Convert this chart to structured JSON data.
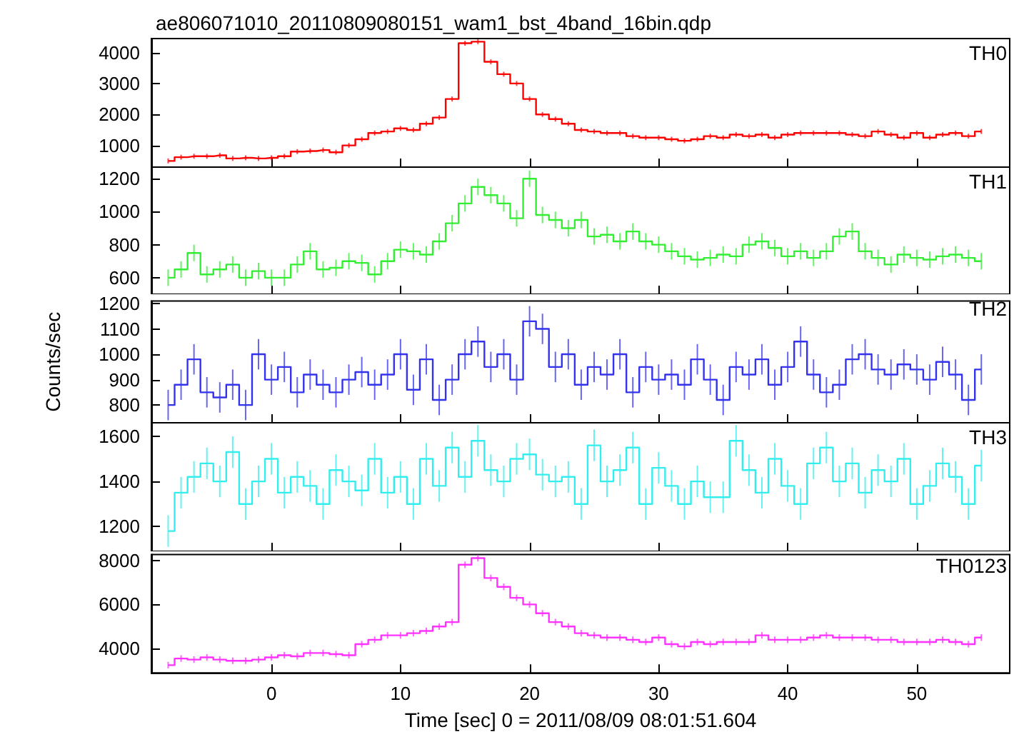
{
  "chart_data": [
    {
      "type": "step",
      "title": "ae806071010_20110809080151_wam1_bst_4band_16bin.qdp",
      "x": [
        -8,
        -7,
        -6,
        -5,
        -4,
        -3,
        -2,
        -1,
        0,
        1,
        2,
        3,
        4,
        5,
        6,
        7,
        8,
        9,
        10,
        11,
        12,
        13,
        14,
        15,
        16,
        17,
        18,
        19,
        20,
        21,
        22,
        23,
        24,
        25,
        26,
        27,
        28,
        29,
        30,
        31,
        32,
        33,
        34,
        35,
        36,
        37,
        38,
        39,
        40,
        41,
        42,
        43,
        44,
        45,
        46,
        47,
        48,
        49,
        50,
        51,
        52,
        53,
        54,
        55
      ],
      "series": [
        {
          "name": "TH0",
          "color": "#ff0000",
          "values": [
            500,
            620,
            650,
            650,
            680,
            580,
            600,
            580,
            600,
            650,
            800,
            820,
            850,
            780,
            1000,
            1200,
            1400,
            1450,
            1550,
            1500,
            1700,
            1900,
            2500,
            4300,
            4350,
            3700,
            3300,
            3000,
            2500,
            2000,
            1850,
            1700,
            1500,
            1450,
            1400,
            1400,
            1300,
            1250,
            1250,
            1200,
            1150,
            1200,
            1300,
            1250,
            1350,
            1300,
            1350,
            1250,
            1350,
            1400,
            1400,
            1400,
            1400,
            1350,
            1300,
            1450,
            1350,
            1250,
            1400,
            1250,
            1350,
            1400,
            1300,
            1450
          ],
          "errors": [
            80,
            80,
            80,
            80,
            80,
            80,
            80,
            80,
            80,
            80,
            80,
            80,
            80,
            80,
            80,
            80,
            80,
            80,
            80,
            80,
            80,
            80,
            80,
            80,
            80,
            80,
            80,
            80,
            80,
            80,
            80,
            80,
            80,
            80,
            80,
            80,
            80,
            80,
            80,
            80,
            80,
            80,
            80,
            80,
            80,
            80,
            80,
            80,
            80,
            80,
            80,
            80,
            80,
            80,
            80,
            80,
            80,
            80,
            80,
            80,
            80,
            80,
            80,
            80
          ]
        }
      ],
      "xlim": [
        -9.3,
        57.2
      ],
      "xticks": [
        0,
        10,
        20,
        30,
        40,
        50
      ],
      "ylim": [
        300,
        4450
      ],
      "yticks": [
        1000,
        2000,
        3000,
        4000
      ],
      "tick_labels": "y",
      "marker": "none",
      "legend": "top right"
    },
    {
      "type": "step",
      "x": [
        -8,
        -7,
        -6,
        -5,
        -4,
        -3,
        -2,
        -1,
        0,
        1,
        2,
        3,
        4,
        5,
        6,
        7,
        8,
        9,
        10,
        11,
        12,
        13,
        14,
        15,
        16,
        17,
        18,
        19,
        20,
        21,
        22,
        23,
        24,
        25,
        26,
        27,
        28,
        29,
        30,
        31,
        32,
        33,
        34,
        35,
        36,
        37,
        38,
        39,
        40,
        41,
        42,
        43,
        44,
        45,
        46,
        47,
        48,
        49,
        50,
        51,
        52,
        53,
        54,
        55
      ],
      "series": [
        {
          "name": "TH1",
          "color": "#33ee33",
          "values": [
            600,
            650,
            750,
            620,
            650,
            680,
            600,
            640,
            600,
            600,
            680,
            760,
            650,
            660,
            700,
            690,
            620,
            700,
            770,
            760,
            740,
            820,
            930,
            1050,
            1150,
            1100,
            1050,
            960,
            1200,
            980,
            950,
            900,
            950,
            850,
            860,
            820,
            880,
            820,
            800,
            760,
            730,
            710,
            720,
            740,
            730,
            800,
            820,
            780,
            730,
            760,
            720,
            760,
            850,
            880,
            760,
            720,
            680,
            740,
            720,
            710,
            730,
            740,
            720,
            700
          ],
          "errors": [
            50,
            50,
            50,
            50,
            50,
            50,
            50,
            50,
            50,
            50,
            50,
            50,
            50,
            50,
            50,
            50,
            50,
            50,
            50,
            50,
            50,
            50,
            50,
            50,
            50,
            50,
            50,
            50,
            50,
            50,
            50,
            50,
            50,
            50,
            50,
            50,
            50,
            50,
            50,
            50,
            50,
            50,
            50,
            50,
            50,
            50,
            50,
            50,
            50,
            50,
            50,
            50,
            50,
            50,
            50,
            50,
            50,
            50,
            50,
            50,
            50,
            50,
            50,
            50
          ]
        }
      ],
      "xlim": [
        -9.3,
        57.2
      ],
      "xticks": [
        0,
        10,
        20,
        30,
        40,
        50
      ],
      "ylim": [
        500,
        1270
      ],
      "yticks": [
        600,
        800,
        1000,
        1200
      ],
      "tick_labels": "y",
      "marker": "none",
      "legend": "top right"
    },
    {
      "type": "step",
      "ylabel": "Counts/sec",
      "x": [
        -8,
        -7,
        -6,
        -5,
        -4,
        -3,
        -2,
        -1,
        0,
        1,
        2,
        3,
        4,
        5,
        6,
        7,
        8,
        9,
        10,
        11,
        12,
        13,
        14,
        15,
        16,
        17,
        18,
        19,
        20,
        21,
        22,
        23,
        24,
        25,
        26,
        27,
        28,
        29,
        30,
        31,
        32,
        33,
        34,
        35,
        36,
        37,
        38,
        39,
        40,
        41,
        42,
        43,
        44,
        45,
        46,
        47,
        48,
        49,
        50,
        51,
        52,
        53,
        54,
        55
      ],
      "series": [
        {
          "name": "TH2",
          "color": "#3333ee",
          "values": [
            800,
            880,
            980,
            850,
            830,
            880,
            800,
            1000,
            900,
            950,
            850,
            920,
            880,
            850,
            900,
            930,
            880,
            920,
            1000,
            860,
            980,
            820,
            900,
            1000,
            1050,
            950,
            1000,
            900,
            1130,
            1100,
            950,
            1000,
            880,
            950,
            920,
            1000,
            850,
            950,
            900,
            920,
            880,
            980,
            900,
            820,
            950,
            920,
            980,
            880,
            950,
            1050,
            920,
            850,
            880,
            980,
            1000,
            940,
            920,
            960,
            940,
            900,
            970,
            920,
            820,
            940
          ],
          "errors": [
            60,
            60,
            60,
            60,
            60,
            60,
            60,
            60,
            60,
            60,
            60,
            60,
            60,
            60,
            60,
            60,
            60,
            60,
            60,
            60,
            60,
            60,
            60,
            60,
            60,
            60,
            60,
            60,
            60,
            60,
            60,
            60,
            60,
            60,
            60,
            60,
            60,
            60,
            60,
            60,
            60,
            60,
            60,
            60,
            60,
            60,
            60,
            60,
            60,
            60,
            60,
            60,
            60,
            60,
            60,
            60,
            60,
            60,
            60,
            60,
            60,
            60,
            60,
            60
          ]
        }
      ],
      "xlim": [
        -9.3,
        57.2
      ],
      "xticks": [
        0,
        10,
        20,
        30,
        40,
        50
      ],
      "ylim": [
        730,
        1210
      ],
      "yticks": [
        800,
        900,
        1000,
        1100,
        1200
      ],
      "tick_labels": "y",
      "marker": "none",
      "legend": "top right"
    },
    {
      "type": "step",
      "x": [
        -8,
        -7,
        -6,
        -5,
        -4,
        -3,
        -2,
        -1,
        0,
        1,
        2,
        3,
        4,
        5,
        6,
        7,
        8,
        9,
        10,
        11,
        12,
        13,
        14,
        15,
        16,
        17,
        18,
        19,
        20,
        21,
        22,
        23,
        24,
        25,
        26,
        27,
        28,
        29,
        30,
        31,
        32,
        33,
        34,
        35,
        36,
        37,
        38,
        39,
        40,
        41,
        42,
        43,
        44,
        45,
        46,
        47,
        48,
        49,
        50,
        51,
        52,
        53,
        54,
        55
      ],
      "series": [
        {
          "name": "TH3",
          "color": "#33eeee",
          "values": [
            1180,
            1350,
            1420,
            1480,
            1400,
            1530,
            1300,
            1400,
            1500,
            1350,
            1420,
            1380,
            1300,
            1450,
            1400,
            1360,
            1500,
            1350,
            1420,
            1300,
            1500,
            1380,
            1550,
            1420,
            1580,
            1450,
            1400,
            1500,
            1520,
            1430,
            1400,
            1420,
            1300,
            1560,
            1400,
            1450,
            1550,
            1300,
            1460,
            1380,
            1300,
            1400,
            1330,
            1330,
            1580,
            1450,
            1350,
            1500,
            1380,
            1300,
            1480,
            1550,
            1400,
            1480,
            1350,
            1450,
            1400,
            1500,
            1300,
            1380,
            1480,
            1420,
            1300,
            1470
          ],
          "errors": [
            70,
            70,
            70,
            70,
            70,
            70,
            70,
            70,
            70,
            70,
            70,
            70,
            70,
            70,
            70,
            70,
            70,
            70,
            70,
            70,
            70,
            70,
            70,
            70,
            70,
            70,
            70,
            70,
            70,
            70,
            70,
            70,
            70,
            70,
            70,
            70,
            70,
            70,
            70,
            70,
            70,
            70,
            70,
            70,
            70,
            70,
            70,
            70,
            70,
            70,
            70,
            70,
            70,
            70,
            70,
            70,
            70,
            70,
            70,
            70,
            70,
            70,
            70,
            70
          ]
        }
      ],
      "xlim": [
        -9.3,
        57.2
      ],
      "xticks": [
        0,
        10,
        20,
        30,
        40,
        50
      ],
      "ylim": [
        1090,
        1660
      ],
      "yticks": [
        1200,
        1400,
        1600
      ],
      "tick_labels": "y",
      "marker": "none",
      "legend": "top right"
    },
    {
      "type": "step",
      "xlabel": "Time [sec] 0 = 2011/08/09 08:01:51.604",
      "x": [
        -8,
        -7,
        -6,
        -5,
        -4,
        -3,
        -2,
        -1,
        0,
        1,
        2,
        3,
        4,
        5,
        6,
        7,
        8,
        9,
        10,
        11,
        12,
        13,
        14,
        15,
        16,
        17,
        18,
        19,
        20,
        21,
        22,
        23,
        24,
        25,
        26,
        27,
        28,
        29,
        30,
        31,
        32,
        33,
        34,
        35,
        36,
        37,
        38,
        39,
        40,
        41,
        42,
        43,
        44,
        45,
        46,
        47,
        48,
        49,
        50,
        51,
        52,
        53,
        54,
        55
      ],
      "series": [
        {
          "name": "TH0123",
          "color": "#ff33ff",
          "values": [
            3250,
            3550,
            3500,
            3600,
            3500,
            3450,
            3450,
            3500,
            3600,
            3700,
            3650,
            3800,
            3800,
            3750,
            3700,
            4200,
            4400,
            4600,
            4600,
            4700,
            4800,
            5000,
            5200,
            7800,
            8100,
            7200,
            6800,
            6300,
            6000,
            5600,
            5200,
            5000,
            4700,
            4600,
            4500,
            4500,
            4400,
            4300,
            4500,
            4200,
            4100,
            4300,
            4200,
            4300,
            4300,
            4300,
            4600,
            4400,
            4400,
            4400,
            4500,
            4600,
            4500,
            4500,
            4500,
            4400,
            4400,
            4300,
            4300,
            4300,
            4400,
            4300,
            4200,
            4500
          ],
          "errors": [
            150,
            150,
            150,
            150,
            150,
            150,
            150,
            150,
            150,
            150,
            150,
            150,
            150,
            150,
            150,
            150,
            150,
            150,
            150,
            150,
            150,
            150,
            150,
            150,
            150,
            150,
            150,
            150,
            150,
            150,
            150,
            150,
            150,
            150,
            150,
            150,
            150,
            150,
            150,
            150,
            150,
            150,
            150,
            150,
            150,
            150,
            150,
            150,
            150,
            150,
            150,
            150,
            150,
            150,
            150,
            150,
            150,
            150,
            150,
            150,
            150,
            150,
            150,
            150
          ]
        }
      ],
      "xlim": [
        -9.3,
        57.2
      ],
      "xticks": [
        0,
        10,
        20,
        30,
        40,
        50
      ],
      "ylim": [
        2900,
        8260
      ],
      "yticks": [
        4000,
        6000,
        8000
      ],
      "marker": "none",
      "legend": "top right"
    }
  ]
}
